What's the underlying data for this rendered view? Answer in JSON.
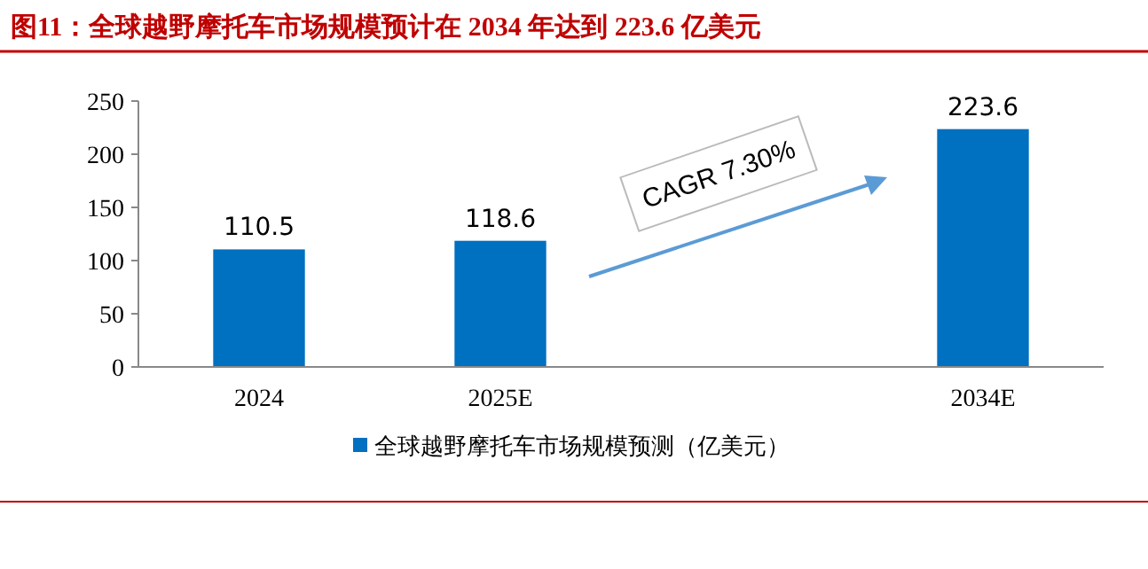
{
  "chart_data": {
    "type": "bar",
    "title": "图11：全球越野摩托车市场规模预计在 2034 年达到 223.6 亿美元",
    "categories": [
      "2024",
      "2025E",
      null,
      "2034E"
    ],
    "series": [
      {
        "name": "全球越野摩托车市场规模预测（亿美元）",
        "color": "#0070c0",
        "values": [
          110.5,
          118.6,
          null,
          223.6
        ]
      }
    ],
    "ylim": [
      0,
      250
    ],
    "yticks": [
      0,
      50,
      100,
      150,
      200,
      250
    ],
    "grid": false,
    "legend": "bottom",
    "data_labels": true,
    "annotations": [
      "CAGR 7.30%"
    ]
  }
}
